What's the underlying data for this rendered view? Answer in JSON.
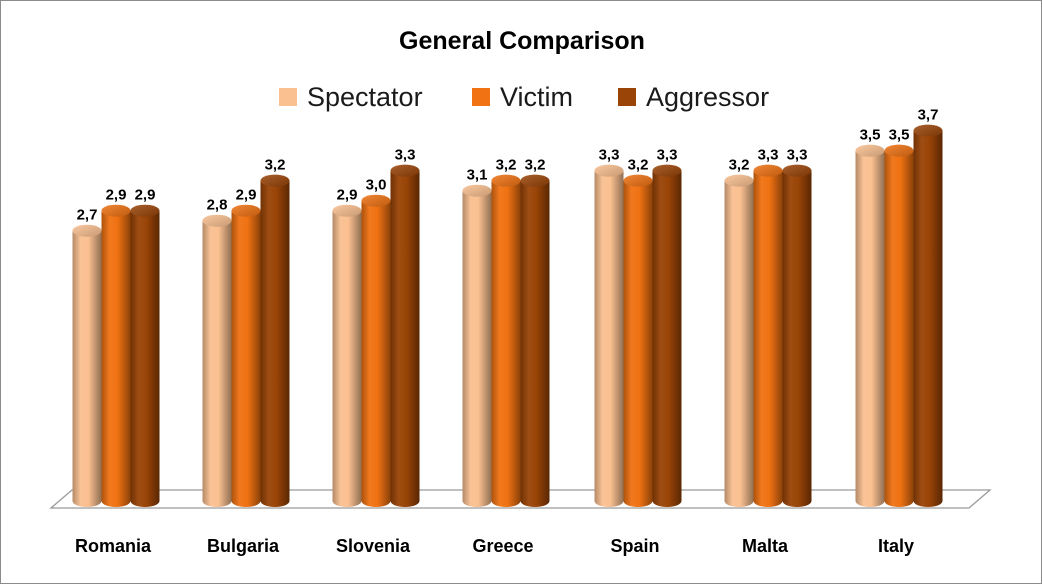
{
  "chart_data": {
    "type": "bar",
    "title": "General Comparison",
    "categories": [
      "Romania",
      "Bulgaria",
      "Slovenia",
      "Greece",
      "Spain",
      "Malta",
      "Italy"
    ],
    "series": [
      {
        "name": "Spectator",
        "color": "#FAC090",
        "values": [
          2.7,
          2.8,
          2.9,
          3.1,
          3.3,
          3.2,
          3.5
        ],
        "labels": [
          "2,7",
          "2,8",
          "2,9",
          "3,1",
          "3,3",
          "3,2",
          "3,5"
        ]
      },
      {
        "name": "Victim",
        "color": "#F07212",
        "values": [
          2.9,
          2.9,
          3.0,
          3.2,
          3.2,
          3.3,
          3.5
        ],
        "labels": [
          "2,9",
          "2,9",
          "3,0",
          "3,2",
          "3,2",
          "3,3",
          "3,5"
        ]
      },
      {
        "name": "Aggressor",
        "color": "#9A4407",
        "values": [
          2.9,
          3.2,
          3.3,
          3.2,
          3.3,
          3.3,
          3.7
        ],
        "labels": [
          "2,9",
          "3,2",
          "3,3",
          "3,2",
          "3,3",
          "3,3",
          "3,7"
        ]
      }
    ],
    "xlabel": "",
    "ylabel": "",
    "ylim": [
      0,
      4
    ],
    "legend_position": "top",
    "grid": false,
    "style": "3d-cylinder"
  }
}
